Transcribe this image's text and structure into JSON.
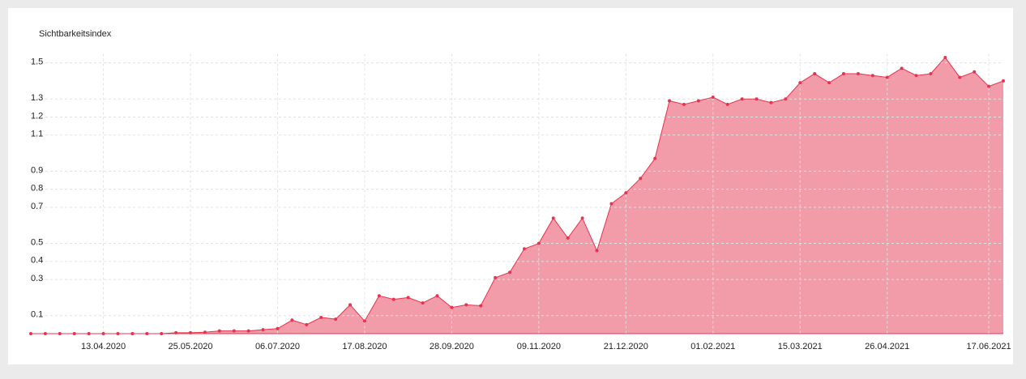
{
  "chart_data": {
    "type": "area",
    "y_label": "Sichtbarkeitsindex",
    "categories": [
      null,
      null,
      null,
      null,
      null,
      "13.04.2020",
      null,
      null,
      null,
      null,
      null,
      "25.05.2020",
      null,
      null,
      null,
      null,
      null,
      "06.07.2020",
      null,
      null,
      null,
      null,
      null,
      "17.08.2020",
      null,
      null,
      null,
      null,
      null,
      "28.09.2020",
      null,
      null,
      null,
      null,
      null,
      "09.11.2020",
      null,
      null,
      null,
      null,
      null,
      "21.12.2020",
      null,
      null,
      null,
      null,
      null,
      "01.02.2021",
      null,
      null,
      null,
      null,
      null,
      "15.03.2021",
      null,
      null,
      null,
      null,
      null,
      "26.04.2021",
      null,
      null,
      null,
      null,
      null,
      null,
      "17.06.2021",
      null
    ],
    "values": [
      0,
      0,
      0,
      0,
      0,
      0,
      0,
      0,
      0,
      0,
      0.005,
      0.005,
      0.008,
      0.015,
      0.015,
      0.015,
      0.022,
      0.028,
      0.075,
      0.05,
      0.09,
      0.08,
      0.16,
      0.07,
      0.21,
      0.19,
      0.2,
      0.17,
      0.21,
      0.145,
      0.16,
      0.155,
      0.31,
      0.34,
      0.47,
      0.5,
      0.64,
      0.53,
      0.64,
      0.46,
      0.72,
      0.78,
      0.86,
      0.97,
      1.29,
      1.27,
      1.29,
      1.31,
      1.27,
      1.3,
      1.3,
      1.28,
      1.3,
      1.39,
      1.44,
      1.39,
      1.44,
      1.44,
      1.43,
      1.42,
      1.47,
      1.43,
      1.44,
      1.53,
      1.42,
      1.45,
      1.37,
      1.4
    ],
    "color": "#e8334f",
    "fill_color": "#f29ba9",
    "ylim": [
      0,
      1.55
    ],
    "yticks": [
      0.1,
      0.3,
      0.4,
      0.5,
      0.7,
      0.8,
      0.9,
      1.1,
      1.2,
      1.3,
      1.5
    ],
    "grid": true
  }
}
